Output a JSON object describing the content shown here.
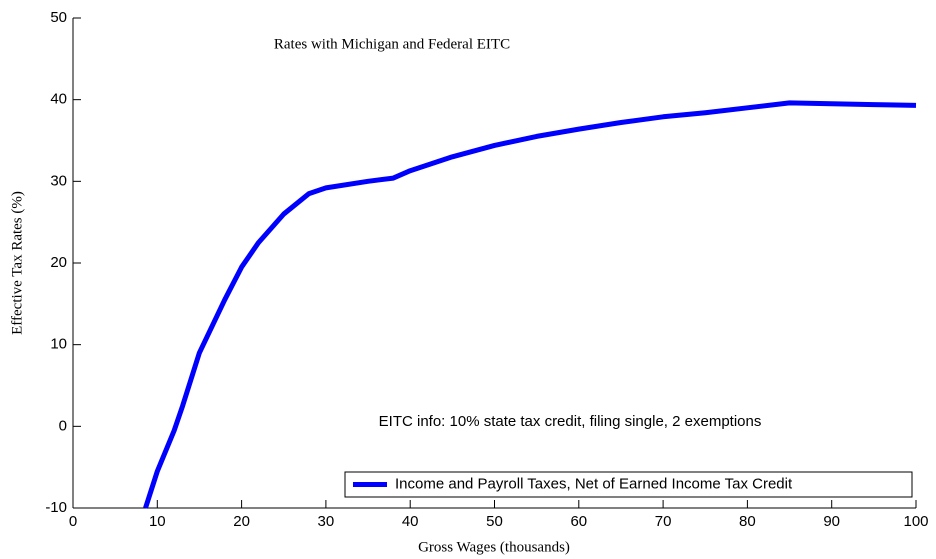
{
  "chart_data": {
    "type": "line",
    "title": "Rates with Michigan and Federal EITC",
    "x_label": "Gross Wages (thousands)",
    "y_label": "Effective Tax Rates (%)",
    "annotation": "EITC info: 10% state tax credit, filing single, 2 exemptions",
    "x": [
      8.6,
      10,
      12,
      13,
      15,
      18,
      20,
      22,
      25,
      28,
      30,
      35,
      38,
      40,
      45,
      50,
      55,
      60,
      65,
      70,
      75,
      80,
      85,
      90,
      95,
      100
    ],
    "series": [
      {
        "name": "Income and Payroll Taxes, Net of Earned Income Tax Credit",
        "color": "#0000ff",
        "values": [
          -10,
          -5.5,
          -0.5,
          2.5,
          9,
          15.5,
          19.5,
          22.5,
          26,
          28.5,
          29.2,
          30,
          30.4,
          31.3,
          33,
          34.4,
          35.5,
          36.4,
          37.2,
          37.9,
          38.4,
          39,
          39.6,
          39.5,
          39.4,
          39.3
        ]
      }
    ],
    "xlim": [
      0,
      100
    ],
    "ylim": [
      -10,
      50
    ],
    "xticks": [
      0,
      10,
      20,
      30,
      40,
      50,
      60,
      70,
      80,
      90,
      100
    ],
    "yticks": [
      -10,
      0,
      10,
      20,
      30,
      40,
      50
    ],
    "legend": "lower right",
    "grid": false
  }
}
